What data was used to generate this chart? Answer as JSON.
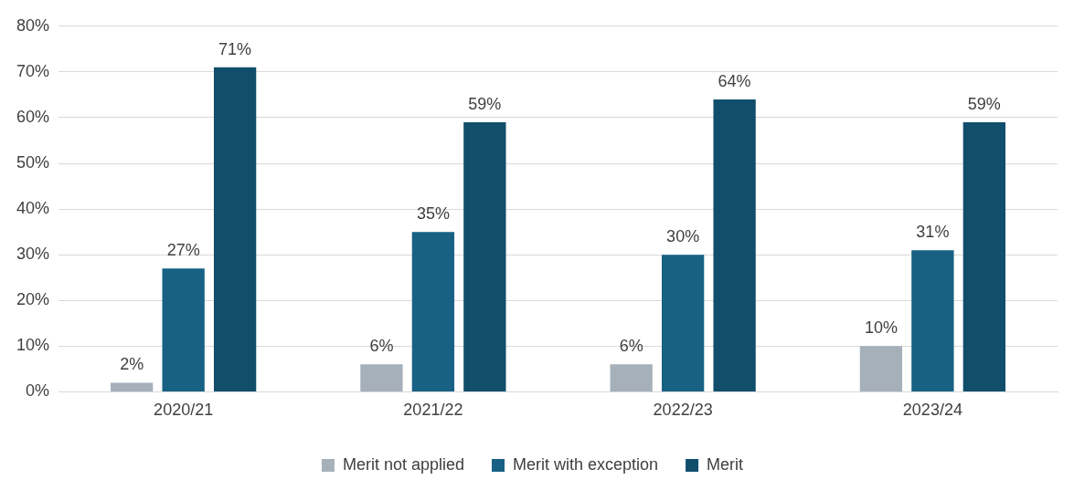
{
  "chart_data": {
    "type": "bar",
    "categories": [
      "2020/21",
      "2021/22",
      "2022/23",
      "2023/24"
    ],
    "series": [
      {
        "name": "Merit not applied",
        "color": "#a5b0ba",
        "values": [
          2,
          6,
          6,
          10
        ],
        "value_labels": [
          "2%",
          "6%",
          "6%",
          "10%"
        ]
      },
      {
        "name": "Merit with exception",
        "color": "#186184",
        "values": [
          27,
          35,
          30,
          31
        ],
        "value_labels": [
          "27%",
          "35%",
          "30%",
          "31%"
        ]
      },
      {
        "name": "Merit",
        "color": "#104e6b",
        "values": [
          71,
          59,
          64,
          59
        ],
        "value_labels": [
          "71%",
          "59%",
          "64%",
          "59%"
        ]
      }
    ],
    "ylim": [
      0,
      80
    ],
    "yticks": [
      {
        "value": 0,
        "label": "0%"
      },
      {
        "value": 10,
        "label": "10%"
      },
      {
        "value": 20,
        "label": "20%"
      },
      {
        "value": 30,
        "label": "30%"
      },
      {
        "value": 40,
        "label": "40%"
      },
      {
        "value": 50,
        "label": "50%"
      },
      {
        "value": 60,
        "label": "60%"
      },
      {
        "value": 70,
        "label": "70%"
      },
      {
        "value": 80,
        "label": "80%"
      }
    ],
    "grid": "y",
    "legend": "bottom"
  }
}
